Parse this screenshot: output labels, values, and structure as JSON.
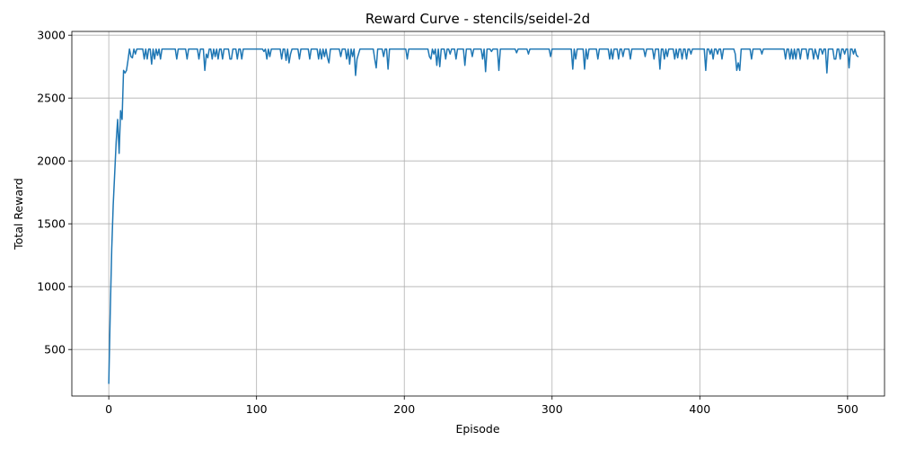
{
  "chart_data": {
    "type": "line",
    "title": "Reward Curve - stencils/seidel-2d",
    "xlabel": "Episode",
    "ylabel": "Total Reward",
    "xlim": [
      -25,
      525
    ],
    "ylim": [
      130,
      3030
    ],
    "xticks": [
      0,
      100,
      200,
      300,
      400,
      500
    ],
    "yticks": [
      500,
      1000,
      1500,
      2000,
      2500,
      3000
    ],
    "xtick_labels": [
      "0",
      "100",
      "200",
      "300",
      "400",
      "500"
    ],
    "ytick_labels": [
      "500",
      "1000",
      "1500",
      "2000",
      "2500",
      "3000"
    ],
    "grid": true,
    "line_color": "#1f77b4",
    "series": [
      {
        "x_start": 0,
        "values": [
          230,
          800,
          1300,
          1650,
          1900,
          2150,
          2330,
          2060,
          2400,
          2330,
          2720,
          2700,
          2720,
          2800,
          2890,
          2830,
          2820,
          2890,
          2850,
          2890,
          2890,
          2890,
          2890,
          2890,
          2810,
          2890,
          2810,
          2890,
          2890,
          2770,
          2890,
          2810,
          2890,
          2840,
          2890,
          2810,
          2890,
          2890,
          2890,
          2890,
          2890,
          2890,
          2890,
          2890,
          2890,
          2890,
          2810,
          2890,
          2890,
          2890,
          2890,
          2890,
          2890,
          2810,
          2890,
          2890,
          2890,
          2890,
          2890,
          2890,
          2890,
          2810,
          2890,
          2890,
          2890,
          2720,
          2850,
          2820,
          2890,
          2890,
          2810,
          2890,
          2830,
          2890,
          2810,
          2890,
          2890,
          2810,
          2890,
          2890,
          2890,
          2890,
          2810,
          2810,
          2890,
          2890,
          2890,
          2810,
          2890,
          2890,
          2810,
          2890,
          2890,
          2890,
          2890,
          2890,
          2890,
          2890,
          2890,
          2890,
          2890,
          2890,
          2890,
          2890,
          2890,
          2870,
          2890,
          2810,
          2890,
          2830,
          2890,
          2890,
          2890,
          2890,
          2890,
          2890,
          2890,
          2810,
          2890,
          2890,
          2800,
          2890,
          2780,
          2850,
          2890,
          2890,
          2890,
          2890,
          2890,
          2810,
          2890,
          2890,
          2890,
          2890,
          2890,
          2890,
          2810,
          2890,
          2890,
          2890,
          2890,
          2890,
          2810,
          2890,
          2810,
          2890,
          2830,
          2890,
          2820,
          2780,
          2890,
          2890,
          2890,
          2890,
          2890,
          2890,
          2890,
          2830,
          2890,
          2890,
          2890,
          2810,
          2890,
          2770,
          2890,
          2830,
          2890,
          2680,
          2810,
          2850,
          2890,
          2890,
          2890,
          2890,
          2890,
          2890,
          2890,
          2890,
          2890,
          2890,
          2810,
          2740,
          2890,
          2890,
          2890,
          2890,
          2830,
          2890,
          2890,
          2730,
          2890,
          2890,
          2890,
          2890,
          2890,
          2890,
          2890,
          2890,
          2890,
          2890,
          2890,
          2890,
          2810,
          2890,
          2890,
          2890,
          2890,
          2890,
          2890,
          2890,
          2890,
          2890,
          2890,
          2890,
          2890,
          2890,
          2890,
          2830,
          2810,
          2890,
          2850,
          2890,
          2760,
          2890,
          2750,
          2890,
          2890,
          2890,
          2810,
          2890,
          2890,
          2850,
          2890,
          2890,
          2890,
          2810,
          2890,
          2890,
          2890,
          2890,
          2890,
          2760,
          2890,
          2890,
          2890,
          2890,
          2830,
          2890,
          2890,
          2890,
          2890,
          2890,
          2890,
          2810,
          2890,
          2710,
          2890,
          2890,
          2890,
          2870,
          2890,
          2890,
          2890,
          2890,
          2720,
          2890,
          2890,
          2890,
          2890,
          2890,
          2890,
          2890,
          2890,
          2890,
          2890,
          2890,
          2860,
          2890,
          2890,
          2890,
          2890,
          2890,
          2890,
          2890,
          2850,
          2890,
          2890,
          2890,
          2890,
          2890,
          2890,
          2890,
          2890,
          2890,
          2890,
          2890,
          2890,
          2890,
          2890,
          2830,
          2890,
          2890,
          2890,
          2890,
          2890,
          2890,
          2890,
          2890,
          2890,
          2890,
          2890,
          2890,
          2890,
          2890,
          2730,
          2890,
          2810,
          2890,
          2890,
          2890,
          2890,
          2890,
          2730,
          2890,
          2810,
          2890,
          2890,
          2890,
          2890,
          2890,
          2890,
          2810,
          2890,
          2890,
          2890,
          2890,
          2890,
          2890,
          2890,
          2810,
          2890,
          2810,
          2890,
          2890,
          2890,
          2810,
          2890,
          2890,
          2830,
          2890,
          2890,
          2890,
          2890,
          2810,
          2890,
          2890,
          2890,
          2890,
          2890,
          2890,
          2890,
          2890,
          2890,
          2830,
          2890,
          2890,
          2890,
          2890,
          2890,
          2810,
          2890,
          2890,
          2890,
          2730,
          2890,
          2890,
          2810,
          2890,
          2830,
          2890,
          2890,
          2890,
          2890,
          2810,
          2890,
          2820,
          2890,
          2890,
          2810,
          2890,
          2890,
          2810,
          2890,
          2890,
          2850,
          2890,
          2890,
          2890,
          2890,
          2890,
          2890,
          2890,
          2890,
          2890,
          2720,
          2890,
          2890,
          2850,
          2890,
          2810,
          2890,
          2890,
          2850,
          2890,
          2890,
          2810,
          2890,
          2890,
          2890,
          2890,
          2890,
          2890,
          2890,
          2890,
          2850,
          2720,
          2780,
          2720,
          2890,
          2890,
          2890,
          2890,
          2890,
          2890,
          2890,
          2810,
          2890,
          2890,
          2890,
          2890,
          2890,
          2890,
          2850,
          2890,
          2890,
          2890,
          2890,
          2890,
          2890,
          2890,
          2890,
          2890,
          2890,
          2890,
          2890,
          2890,
          2890,
          2890,
          2810,
          2890,
          2890,
          2810,
          2890,
          2810,
          2890,
          2810,
          2890,
          2890,
          2810,
          2890,
          2890,
          2890,
          2890,
          2810,
          2890,
          2890,
          2890,
          2810,
          2890,
          2850,
          2810,
          2890,
          2890,
          2850,
          2890,
          2890,
          2700,
          2890,
          2890,
          2890,
          2890,
          2810,
          2810,
          2890,
          2890,
          2810,
          2890,
          2890,
          2850,
          2890,
          2890,
          2740,
          2890,
          2890,
          2850,
          2890,
          2840,
          2830
        ]
      }
    ]
  }
}
